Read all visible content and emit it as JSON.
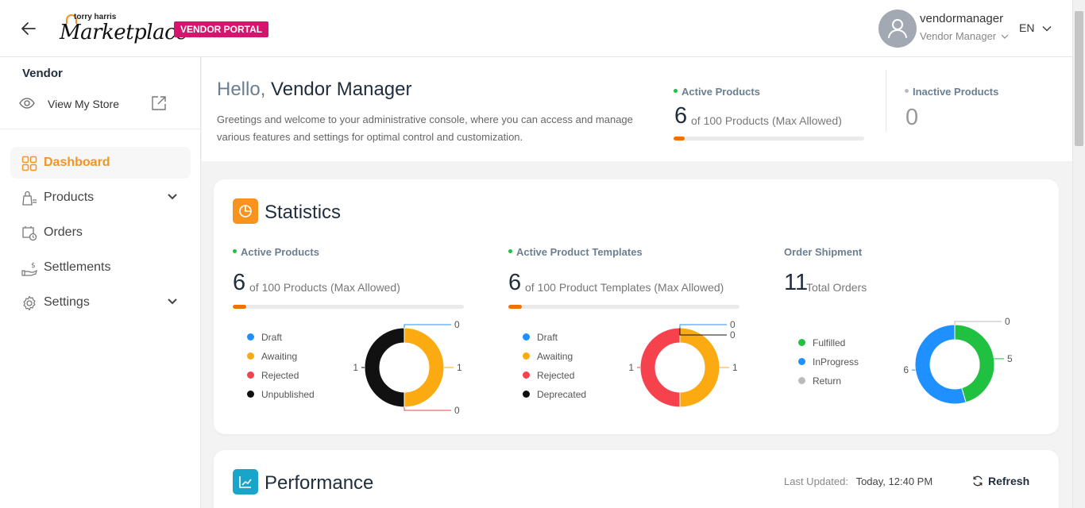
{
  "header": {
    "logo_small": "torry harris",
    "logo_big": "Marketplace",
    "portal_badge": "VENDOR PORTAL",
    "user_name": "vendormanager",
    "user_role": "Vendor Manager",
    "language": "EN"
  },
  "sidebar": {
    "title": "Vendor",
    "view_store": "View My Store",
    "items": [
      {
        "label": "Dashboard",
        "icon": "grid-icon",
        "active": true
      },
      {
        "label": "Products",
        "icon": "bag-icon",
        "expandable": true
      },
      {
        "label": "Orders",
        "icon": "cart-icon"
      },
      {
        "label": "Settlements",
        "icon": "money-hand-icon"
      },
      {
        "label": "Settings",
        "icon": "gear-icon",
        "expandable": true
      }
    ]
  },
  "hello": {
    "greeting": "Hello,",
    "name": "Vendor Manager",
    "description": "Greetings and welcome to your administrative console, where you can access and manage various features and settings for optimal control and customization.",
    "active_products_label": "Active Products",
    "active_products_count": "6",
    "active_products_sub": "of 100 Products (Max Allowed)",
    "active_products_fraction": 0.06,
    "inactive_products_label": "Inactive Products",
    "inactive_products_count": "0"
  },
  "statistics": {
    "title": "Statistics",
    "active_products": {
      "label": "Active Products",
      "count": "6",
      "sub": "of 100 Products (Max Allowed)",
      "fraction": 0.06
    },
    "active_templates": {
      "label": "Active Product Templates",
      "count": "6",
      "sub": "of 100 Product Templates (Max Allowed)",
      "fraction": 0.06
    },
    "order_shipment": {
      "label": "Order Shipment",
      "count": "11",
      "sub": "Total Orders"
    }
  },
  "chart_data": [
    {
      "type": "pie",
      "categories": [
        "Draft",
        "Awaiting",
        "Rejected",
        "Unpublished"
      ],
      "values": [
        0,
        1,
        0,
        1
      ],
      "colors": [
        "#1e90ff",
        "#fbaa12",
        "#f5424d",
        "#111111"
      ]
    },
    {
      "type": "pie",
      "categories": [
        "Draft",
        "Awaiting",
        "Rejected",
        "Deprecated"
      ],
      "values": [
        0,
        1,
        1,
        0
      ],
      "colors": [
        "#1e90ff",
        "#fbaa12",
        "#f5424d",
        "#111111"
      ]
    },
    {
      "type": "pie",
      "categories": [
        "Fulfilled",
        "InProgress",
        "Return"
      ],
      "values": [
        5,
        6,
        0
      ],
      "colors": [
        "#20c040",
        "#1e90ff",
        "#bbbbbb"
      ]
    }
  ],
  "performance": {
    "title": "Performance",
    "last_updated_label": "Last Updated:",
    "last_updated_value": "Today, 12:40 PM",
    "refresh_label": "Refresh"
  },
  "colors": {
    "accent": "#f7931e",
    "badge": "#d6146f",
    "progress": "#ef7100",
    "active_dot": "#20c040",
    "inactive_dot": "#bbbbbb"
  }
}
